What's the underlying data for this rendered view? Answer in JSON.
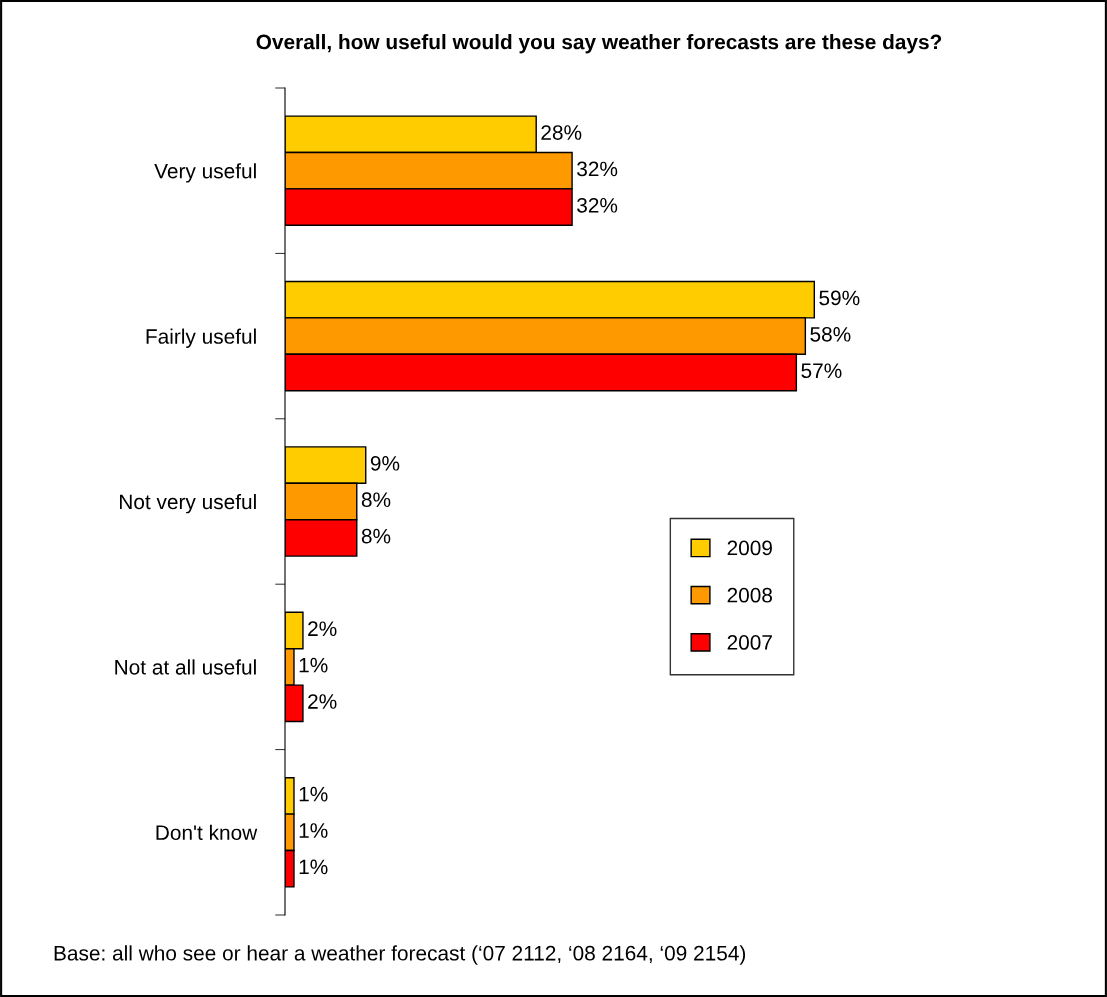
{
  "chart_data": {
    "type": "bar",
    "orientation": "horizontal",
    "title": "Overall, how useful would you say weather forecasts are these days?",
    "categories": [
      "Very useful",
      "Fairly useful",
      "Not very useful",
      "Not at all useful",
      "Don't know"
    ],
    "series": [
      {
        "name": "2009",
        "color": "#ffcc00",
        "values": [
          28,
          59,
          9,
          2,
          1
        ],
        "value_labels": [
          "28%",
          "59%",
          "9%",
          "2%",
          "1%"
        ]
      },
      {
        "name": "2008",
        "color": "#ff9900",
        "values": [
          32,
          58,
          8,
          1,
          1
        ],
        "value_labels": [
          "32%",
          "58%",
          "8%",
          "1%",
          "1%"
        ]
      },
      {
        "name": "2007",
        "color": "#ff0000",
        "values": [
          32,
          57,
          8,
          2,
          1
        ],
        "value_labels": [
          "32%",
          "57%",
          "8%",
          "2%",
          "1%"
        ]
      }
    ],
    "legend": "right",
    "grid": false,
    "annotations": [
      "Base: all who see or hear a weather forecast (‘07 2112, ‘08 2164, ‘09 2154)"
    ]
  }
}
